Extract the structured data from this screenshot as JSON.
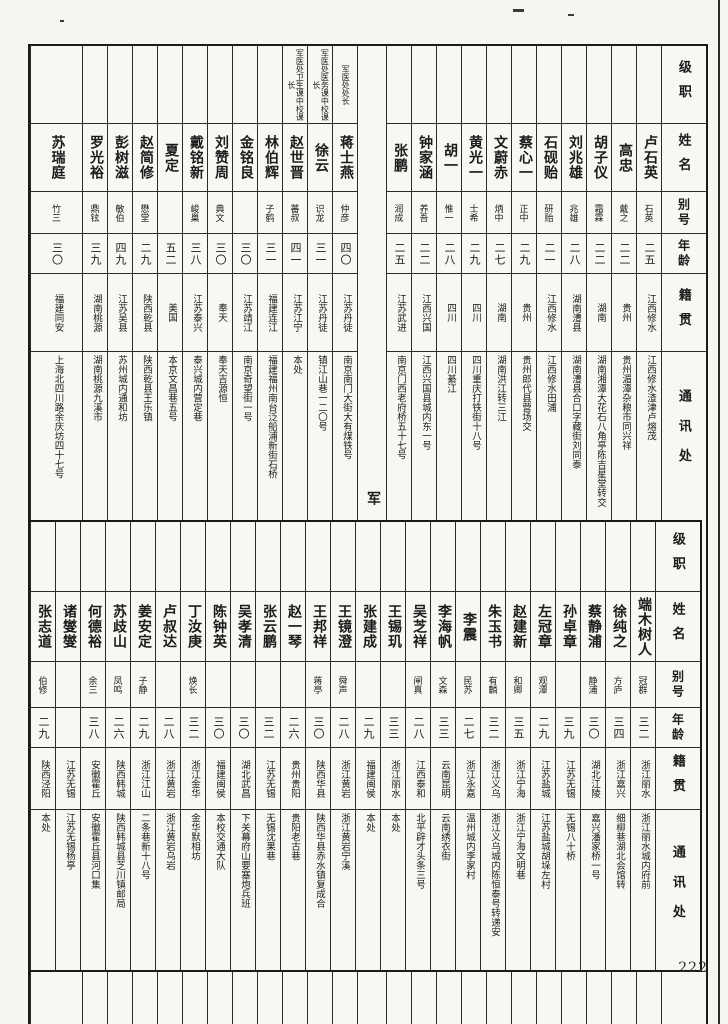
{
  "page": {
    "number": "222"
  },
  "column_headers": {
    "rank": "级职",
    "name": "姓名",
    "alias": "别号",
    "age": "年龄",
    "origin": "籍贯",
    "address": "通讯处"
  },
  "top_table": {
    "section_divider": {
      "label": "军医处",
      "insert_before_index": 11
    },
    "people": [
      {
        "rank": "",
        "name": "卢石英",
        "alias": "石英",
        "age": "二五",
        "origin": "江西修水",
        "address": "江西修水渣津卢熔茂"
      },
      {
        "rank": "",
        "name": "高忠",
        "alias": "戴之",
        "age": "二二",
        "origin": "贵州",
        "address": "贵州湄潭杂粮市同兴祥"
      },
      {
        "rank": "",
        "name": "胡子仪",
        "alias": "霜霖",
        "age": "二二",
        "origin": "湖南",
        "address": "湖南湘潭大花石八角亭陈吉星堂转交"
      },
      {
        "rank": "",
        "name": "刘兆雄",
        "alias": "兆雄",
        "age": "二八",
        "origin": "湖南澧县",
        "address": "湖南澧县合口字藏街刘同泰"
      },
      {
        "rank": "",
        "name": "石砚贻",
        "alias": "研贻",
        "age": "二一",
        "origin": "江西修水",
        "address": "江西修水田浦"
      },
      {
        "rank": "",
        "name": "蔡心一",
        "alias": "正中",
        "age": "二九",
        "origin": "贵州",
        "address": "贵州郎代县营场交"
      },
      {
        "rank": "",
        "name": "文蔚赤",
        "alias": "炳中",
        "age": "二七",
        "origin": "湖南",
        "address": "湖南洪江转三江"
      },
      {
        "rank": "",
        "name": "黄光一",
        "alias": "士希",
        "age": "二九",
        "origin": "四川",
        "address": "四川重庆打铁街十八号"
      },
      {
        "rank": "",
        "name": "胡一",
        "alias": "惟一",
        "age": "二八",
        "origin": "四川",
        "address": "四川綦江"
      },
      {
        "rank": "",
        "name": "钟家涵",
        "alias": "养吾",
        "age": "二二",
        "origin": "江西兴国",
        "address": "江西兴国县城内东一号"
      },
      {
        "rank": "",
        "name": "张鹏",
        "alias": "润成",
        "age": "二五",
        "origin": "江苏武进",
        "address": "南京门西老府桥五十七号"
      },
      {
        "rank": "军医处处长",
        "name": "蒋士燕",
        "alias": "仲彦",
        "age": "四〇",
        "origin": "江苏丹徒",
        "address": "南京南门大街大有煤铁号"
      },
      {
        "rank": "军医处医务课中校课长",
        "name": "徐云",
        "alias": "识龙",
        "age": "三一",
        "origin": "江苏丹徒",
        "address": "镇江山巷一二〇号"
      },
      {
        "rank": "军医处卫生课中校课长",
        "name": "赵世晋",
        "alias": "蕃叔",
        "age": "四一",
        "origin": "江苏江宁",
        "address": "本处"
      },
      {
        "rank": "",
        "name": "林伯辉",
        "alias": "子鹤",
        "age": "三一",
        "origin": "福建连江",
        "address": "福建福州南台泛船浦新街石桥"
      },
      {
        "rank": "",
        "name": "金铭良",
        "alias": "",
        "age": "三〇",
        "origin": "江苏靖江",
        "address": "南京奇望街一号"
      },
      {
        "rank": "",
        "name": "刘赞周",
        "alias": "典文",
        "age": "三〇",
        "origin": "奉天",
        "address": "奉天吉源恒"
      },
      {
        "rank": "",
        "name": "戴铭新",
        "alias": "峻巢",
        "age": "三八",
        "origin": "江苏泰兴",
        "address": "泰兴城内营定巷"
      },
      {
        "rank": "",
        "name": "夏定",
        "alias": "",
        "age": "五二",
        "origin": "美国",
        "address": "本京文昌巷五号"
      },
      {
        "rank": "",
        "name": "赵简修",
        "alias": "懋堂",
        "age": "二九",
        "origin": "陕西乾县",
        "address": "陕西乾县王乐镇"
      },
      {
        "rank": "",
        "name": "彭树滋",
        "alias": "敏伯",
        "age": "四九",
        "origin": "江苏吴县",
        "address": "苏州城内通和坊"
      },
      {
        "rank": "",
        "name": "罗光裕",
        "alias": "鼎铉",
        "age": "三九",
        "origin": "湖南桃源",
        "address": "湖南桃源九溪市"
      },
      {
        "rank": "",
        "name": "苏瑞庭",
        "alias": "竹三",
        "age": "三〇",
        "origin": "福建同安",
        "address": "上海北四川路余庆坊四十七号",
        "wide": true
      }
    ]
  },
  "bottom_table": {
    "people": [
      {
        "rank": "",
        "name": "端木树人",
        "alias": "冠群",
        "age": "三二",
        "origin": "浙江丽水",
        "address": "浙江丽水城内府前"
      },
      {
        "rank": "",
        "name": "徐纯之",
        "alias": "方庐",
        "age": "三四",
        "origin": "浙江嘉兴",
        "address": "细柳巷湖北会馆转"
      },
      {
        "rank": "",
        "name": "蔡静浦",
        "alias": "静浦",
        "age": "三〇",
        "origin": "湖北江陵",
        "address": "嘉兴潘家桥一号"
      },
      {
        "rank": "",
        "name": "孙卓章",
        "alias": "",
        "age": "三九",
        "origin": "江苏无锡",
        "address": "无锡八十桥"
      },
      {
        "rank": "",
        "name": "左冠章",
        "alias": "观潭",
        "age": "二九",
        "origin": "江苏盐城",
        "address": "江苏盐城胡垛左村"
      },
      {
        "rank": "",
        "name": "赵建新",
        "alias": "和卿",
        "age": "三五",
        "origin": "浙江宁海",
        "address": "浙江宁海文明巷"
      },
      {
        "rank": "",
        "name": "朱玉书",
        "alias": "有麟",
        "age": "三二",
        "origin": "浙江义乌",
        "address": "浙江义乌城内陈恒泰号转递安"
      },
      {
        "rank": "",
        "name": "李震",
        "alias": "民苏",
        "age": "二七",
        "origin": "浙江永嘉",
        "address": "温州城内李家村"
      },
      {
        "rank": "",
        "name": "李海帆",
        "alias": "文森",
        "age": "三三",
        "origin": "云南昆明",
        "address": "云南绣衣街"
      },
      {
        "rank": "",
        "name": "吴芝祥",
        "alias": "闸真",
        "age": "二八",
        "origin": "江西泰和",
        "address": "北平辟才头条三号"
      },
      {
        "rank": "",
        "name": "王锡玑",
        "alias": "",
        "age": "三三",
        "origin": "浙江丽水",
        "address": "本处"
      },
      {
        "rank": "",
        "name": "张建成",
        "alias": "",
        "age": "二九",
        "origin": "福建闽侯",
        "address": "本处"
      },
      {
        "rank": "",
        "name": "王镜澄",
        "alias": "舜声",
        "age": "二八",
        "origin": "浙江黄岩",
        "address": "浙江黄岩宁溪"
      },
      {
        "rank": "",
        "name": "王邦祥",
        "alias": "蒋亭",
        "age": "三〇",
        "origin": "陕西华县",
        "address": "陕西华县赤水镇复成合"
      },
      {
        "rank": "",
        "name": "赵一琴",
        "alias": "",
        "age": "二六",
        "origin": "贵州贵阳",
        "address": "贵阳老古巷"
      },
      {
        "rank": "",
        "name": "张云鹏",
        "alias": "",
        "age": "三二",
        "origin": "江苏无锡",
        "address": "无锡沈果巷"
      },
      {
        "rank": "",
        "name": "吴孝清",
        "alias": "",
        "age": "三〇",
        "origin": "湖北武昌",
        "address": "下关幕府山要塞炮兵班"
      },
      {
        "rank": "",
        "name": "陈钟英",
        "alias": "",
        "age": "三〇",
        "origin": "福建闽侯",
        "address": "本校交通大队"
      },
      {
        "rank": "",
        "name": "丁汝庚",
        "alias": "焕长",
        "age": "三二",
        "origin": "浙江金华",
        "address": "金华默相坊"
      },
      {
        "rank": "",
        "name": "卢叔达",
        "alias": "",
        "age": "二八",
        "origin": "浙江黄岩",
        "address": "浙江黄岩乌岩"
      },
      {
        "rank": "",
        "name": "姜安定",
        "alias": "子静",
        "age": "二九",
        "origin": "浙江江山",
        "address": "二条巷新十八号"
      },
      {
        "rank": "",
        "name": "苏歧山",
        "alias": "凤鸣",
        "age": "二六",
        "origin": "陕西韩城",
        "address": "陕西韩城县芝川镇邮局"
      },
      {
        "rank": "",
        "name": "何德裕",
        "alias": "余三",
        "age": "三八",
        "origin": "安徽霍丘",
        "address": "安徽霍丘县河口集"
      },
      {
        "rank": "",
        "name": "诸燮燮",
        "alias": "",
        "age": "",
        "origin": "江苏无锡",
        "address": "江苏无锡杨亭"
      },
      {
        "rank": "",
        "name": "张志道",
        "alias": "伯修",
        "age": "二九",
        "origin": "陕西泾阳",
        "address": "本处"
      }
    ]
  }
}
